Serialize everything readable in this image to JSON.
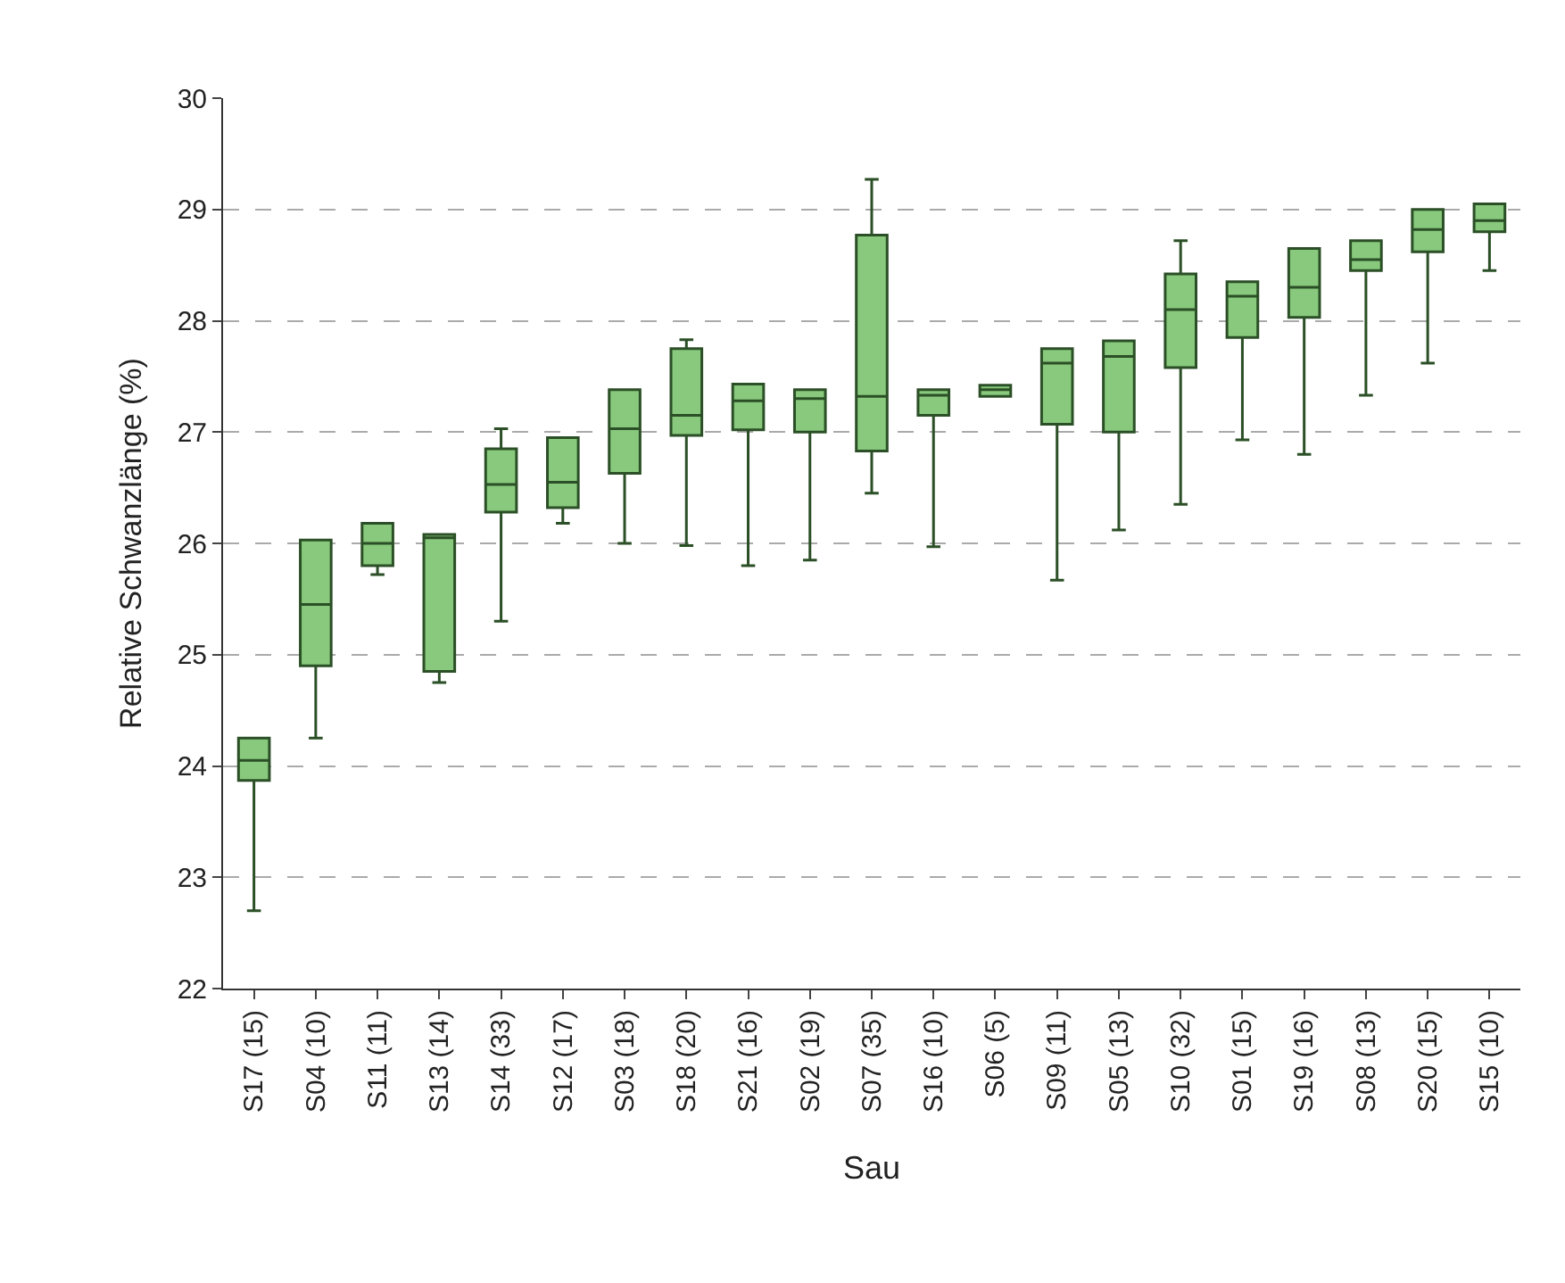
{
  "chart_data": {
    "type": "box",
    "xlabel": "Sau",
    "ylabel": "Relative Schwanzlänge (%)",
    "categories": [
      "S17 (15)",
      "S04 (10)",
      "S11 (11)",
      "S13 (14)",
      "S14 (33)",
      "S12 (17)",
      "S03 (18)",
      "S18 (20)",
      "S21 (16)",
      "S02 (19)",
      "S07 (35)",
      "S16 (10)",
      "S06 (5)",
      "S09 (11)",
      "S05 (13)",
      "S10 (32)",
      "S01 (15)",
      "S19 (16)",
      "S08 (13)",
      "S20 (15)",
      "S15 (10)"
    ],
    "series": [
      {
        "color": "#88c97d",
        "boxes": [
          {
            "low": 22.7,
            "q1": 23.87,
            "median": 24.05,
            "q3": 24.25,
            "high": 24.25
          },
          {
            "low": 24.25,
            "q1": 24.9,
            "median": 25.45,
            "q3": 26.03,
            "high": 26.03
          },
          {
            "low": 25.72,
            "q1": 25.8,
            "median": 26.0,
            "q3": 26.18,
            "high": 26.18
          },
          {
            "low": 24.75,
            "q1": 24.85,
            "median": 26.05,
            "q3": 26.08,
            "high": 26.08
          },
          {
            "low": 25.3,
            "q1": 26.28,
            "median": 26.53,
            "q3": 26.85,
            "high": 27.03
          },
          {
            "low": 26.18,
            "q1": 26.32,
            "median": 26.55,
            "q3": 26.95,
            "high": 26.95
          },
          {
            "low": 26.0,
            "q1": 26.63,
            "median": 27.03,
            "q3": 27.38,
            "high": 27.38
          },
          {
            "low": 25.98,
            "q1": 26.97,
            "median": 27.15,
            "q3": 27.75,
            "high": 27.83
          },
          {
            "low": 25.8,
            "q1": 27.02,
            "median": 27.28,
            "q3": 27.43,
            "high": 27.43
          },
          {
            "low": 25.85,
            "q1": 27.0,
            "median": 27.3,
            "q3": 27.38,
            "high": 27.38
          },
          {
            "low": 26.45,
            "q1": 26.83,
            "median": 27.32,
            "q3": 28.77,
            "high": 29.27
          },
          {
            "low": 25.97,
            "q1": 27.15,
            "median": 27.33,
            "q3": 27.38,
            "high": 27.38
          },
          {
            "low": 27.32,
            "q1": 27.32,
            "median": 27.38,
            "q3": 27.42,
            "high": 27.42
          },
          {
            "low": 25.67,
            "q1": 27.07,
            "median": 27.62,
            "q3": 27.75,
            "high": 27.75
          },
          {
            "low": 26.12,
            "q1": 27.0,
            "median": 27.68,
            "q3": 27.82,
            "high": 27.82
          },
          {
            "low": 26.35,
            "q1": 27.58,
            "median": 28.1,
            "q3": 28.42,
            "high": 28.72
          },
          {
            "low": 26.93,
            "q1": 27.85,
            "median": 28.22,
            "q3": 28.35,
            "high": 28.35
          },
          {
            "low": 26.8,
            "q1": 28.03,
            "median": 28.3,
            "q3": 28.65,
            "high": 28.65
          },
          {
            "low": 27.33,
            "q1": 28.45,
            "median": 28.55,
            "q3": 28.72,
            "high": 28.72
          },
          {
            "low": 27.62,
            "q1": 28.62,
            "median": 28.82,
            "q3": 29.0,
            "high": 29.0
          },
          {
            "low": 28.45,
            "q1": 28.8,
            "median": 28.9,
            "q3": 29.05,
            "high": 29.05
          }
        ]
      }
    ],
    "ylim": [
      22,
      30
    ],
    "yticks": [
      22,
      23,
      24,
      25,
      26,
      27,
      28,
      29,
      30
    ],
    "grid": "y"
  }
}
